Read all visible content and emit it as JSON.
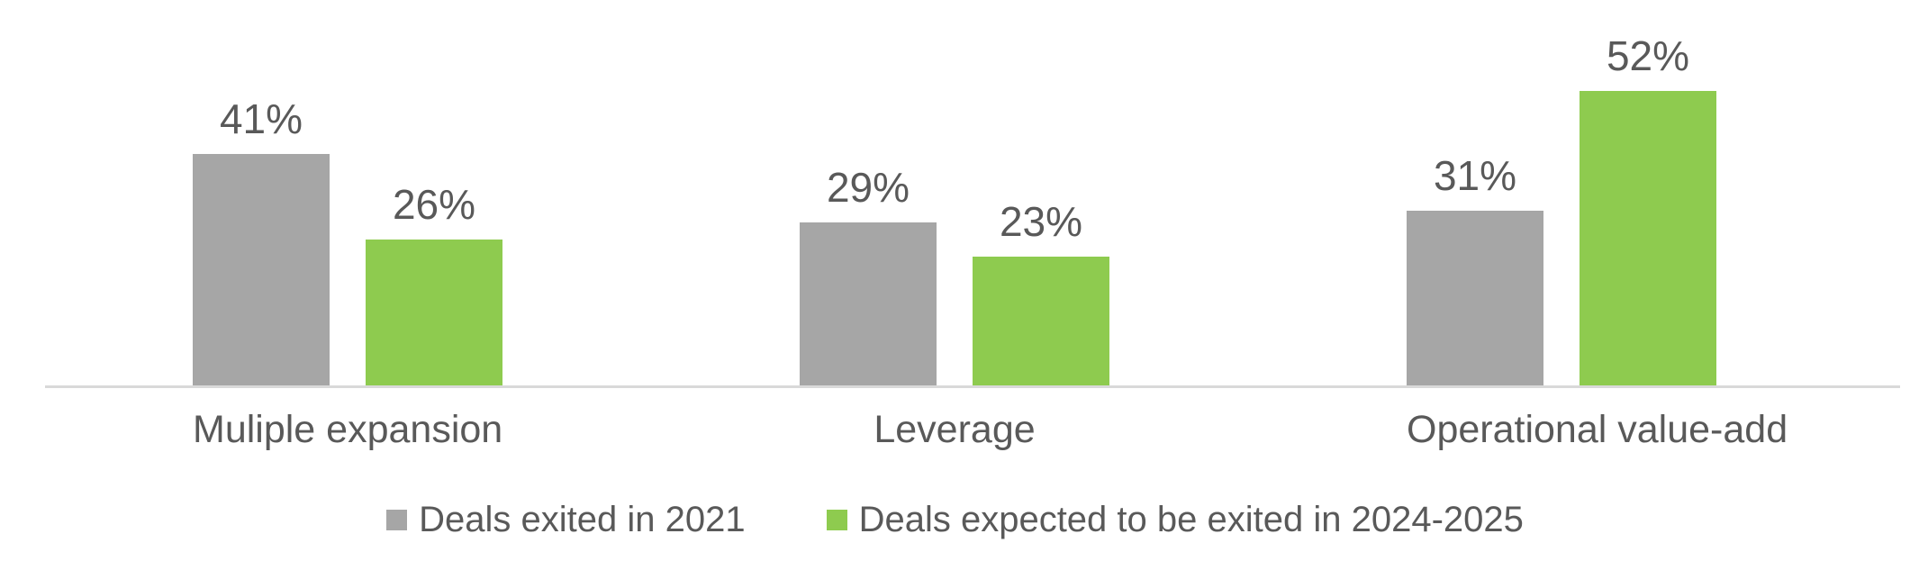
{
  "chart_data": {
    "type": "bar",
    "title": "",
    "xlabel": "",
    "ylabel": "",
    "categories": [
      "Muliple expansion",
      "Leverage",
      "Operational value-add"
    ],
    "series": [
      {
        "name": "Deals exited in 2021",
        "color": "#a6a6a6",
        "values": [
          41,
          29,
          31
        ],
        "labels": [
          "41%",
          "29%",
          "31%"
        ]
      },
      {
        "name": "Deals expected to be exited in 2024-2025",
        "color": "#8ecb4f",
        "values": [
          26,
          23,
          52
        ],
        "labels": [
          "26%",
          "23%",
          "52%"
        ]
      }
    ],
    "value_unit": "%",
    "ylim": [
      0,
      68
    ],
    "grid": false,
    "y_axis_visible": false,
    "legend_position": "bottom",
    "axis_line_color": "#d9d9d9",
    "text_color": "#595959"
  }
}
